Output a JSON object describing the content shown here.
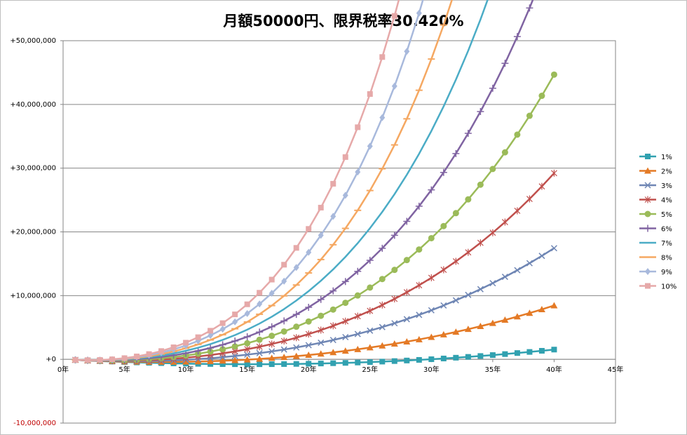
{
  "chart_data": {
    "type": "line",
    "title": "月額50000円、限界税率30.420%",
    "x_unit": "年",
    "xlim": [
      0,
      45
    ],
    "ylim": [
      -10000000,
      50000000
    ],
    "x_ticks": [
      "0年",
      "5年",
      "10年",
      "15年",
      "20年",
      "25年",
      "30年",
      "35年",
      "40年",
      "45年"
    ],
    "y_ticks": [
      "+50,000,000",
      "+40,000,000",
      "+30,000,000",
      "+20,000,000",
      "+10,000,000",
      "+0",
      "-10,000,000"
    ],
    "x": [
      1,
      2,
      3,
      4,
      5,
      6,
      7,
      8,
      9,
      10,
      11,
      12,
      13,
      14,
      15,
      16,
      17,
      18,
      19,
      20,
      21,
      22,
      23,
      24,
      25,
      26,
      27,
      28,
      29,
      30,
      31,
      32,
      33,
      34,
      35,
      36,
      37,
      38,
      39,
      40
    ],
    "series": [
      {
        "name": "1%",
        "color": "#31a1b0",
        "marker": "square"
      },
      {
        "name": "2%",
        "color": "#e47a26",
        "marker": "triangle"
      },
      {
        "name": "3%",
        "color": "#6f86b4",
        "marker": "x"
      },
      {
        "name": "4%",
        "color": "#c0504d",
        "marker": "star"
      },
      {
        "name": "5%",
        "color": "#9bbb59",
        "marker": "circle"
      },
      {
        "name": "6%",
        "color": "#8064a2",
        "marker": "plus"
      },
      {
        "name": "7%",
        "color": "#4bacc6",
        "marker": "none"
      },
      {
        "name": "8%",
        "color": "#f5a862",
        "marker": "dash"
      },
      {
        "name": "9%",
        "color": "#a8b9dc",
        "marker": "diamond"
      },
      {
        "name": "10%",
        "color": "#e6a9a9",
        "marker": "square"
      }
    ]
  }
}
